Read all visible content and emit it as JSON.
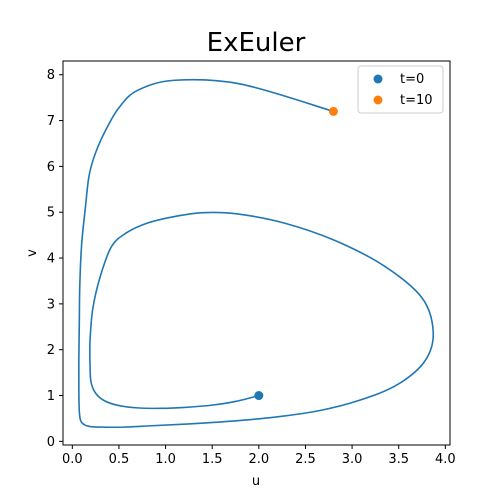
{
  "chart_data": {
    "type": "line",
    "title": "ExEuler",
    "xlabel": "u",
    "ylabel": "v",
    "xlim": [
      -0.1,
      4.05
    ],
    "ylim": [
      -0.08,
      8.3
    ],
    "xticks": [
      "0.0",
      "0.5",
      "1.0",
      "1.5",
      "2.0",
      "2.5",
      "3.0",
      "3.5",
      "4.0"
    ],
    "yticks": [
      "0",
      "1",
      "2",
      "3",
      "4",
      "5",
      "6",
      "7",
      "8"
    ],
    "grid": false,
    "legend_position": "top-right",
    "line_color": "#1f77b4",
    "trajectory": {
      "u": [
        2.0,
        1.75,
        1.5,
        1.2,
        0.95,
        0.7,
        0.5,
        0.35,
        0.25,
        0.2,
        0.19,
        0.19,
        0.22,
        0.3,
        0.42,
        0.58,
        0.8,
        1.08,
        1.4,
        1.78,
        2.28,
        2.82,
        3.35,
        3.75,
        3.87,
        3.78,
        3.48,
        3.07,
        2.65,
        2.18,
        1.7,
        1.25,
        0.85,
        0.55,
        0.33,
        0.2,
        0.13,
        0.09,
        0.075,
        0.07,
        0.07,
        0.075,
        0.08,
        0.1,
        0.14,
        0.18,
        0.25,
        0.36,
        0.5,
        0.7,
        1.1,
        1.8,
        2.8
      ],
      "v": [
        1.0,
        0.87,
        0.79,
        0.74,
        0.72,
        0.73,
        0.78,
        0.88,
        1.05,
        1.3,
        1.65,
        2.2,
        2.9,
        3.6,
        4.25,
        4.55,
        4.76,
        4.9,
        4.99,
        4.96,
        4.76,
        4.38,
        3.82,
        3.13,
        2.38,
        1.75,
        1.23,
        0.89,
        0.67,
        0.53,
        0.44,
        0.38,
        0.34,
        0.31,
        0.31,
        0.32,
        0.36,
        0.45,
        0.65,
        1.1,
        1.8,
        2.6,
        3.4,
        4.3,
        5.1,
        5.8,
        6.3,
        6.8,
        7.28,
        7.66,
        7.88,
        7.8,
        7.2
      ]
    },
    "series": [
      {
        "name": "t=0",
        "color": "#1f77b4",
        "u": 2.0,
        "v": 1.0
      },
      {
        "name": "t=10",
        "color": "#ff7f0e",
        "u": 2.8,
        "v": 7.2
      }
    ]
  }
}
